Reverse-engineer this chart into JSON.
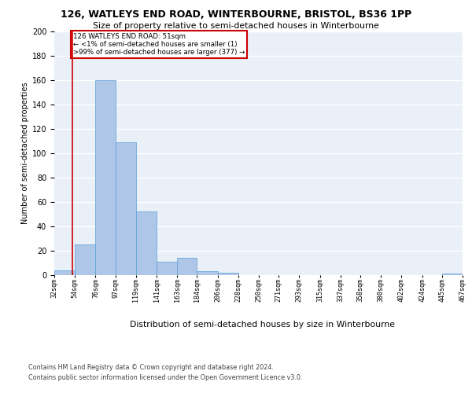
{
  "title1": "126, WATLEYS END ROAD, WINTERBOURNE, BRISTOL, BS36 1PP",
  "title2": "Size of property relative to semi-detached houses in Winterbourne",
  "xlabel": "Distribution of semi-detached houses by size in Winterbourne",
  "ylabel": "Number of semi-detached properties",
  "bar_edges": [
    32,
    54,
    76,
    97,
    119,
    141,
    163,
    184,
    206,
    228,
    250,
    271,
    293,
    315,
    337,
    358,
    380,
    402,
    424,
    445,
    467
  ],
  "bar_heights": [
    4,
    25,
    160,
    109,
    52,
    11,
    14,
    3,
    2,
    0,
    0,
    0,
    0,
    0,
    0,
    0,
    0,
    0,
    0,
    1
  ],
  "bar_color": "#aec6e8",
  "bar_edge_color": "#5a9fd4",
  "annotation_text_line1": "126 WATLEYS END ROAD: 51sqm",
  "annotation_text_line2": "← <1% of semi-detached houses are smaller (1)",
  "annotation_text_line3": ">99% of semi-detached houses are larger (377) →",
  "vline_x": 51,
  "vline_color": "#cc0000",
  "box_color": "#cc0000",
  "ylim": [
    0,
    200
  ],
  "yticks": [
    0,
    20,
    40,
    60,
    80,
    100,
    120,
    140,
    160,
    180,
    200
  ],
  "footer1": "Contains HM Land Registry data © Crown copyright and database right 2024.",
  "footer2": "Contains public sector information licensed under the Open Government Licence v3.0.",
  "bg_color": "#eaf0f8",
  "grid_color": "#ffffff"
}
